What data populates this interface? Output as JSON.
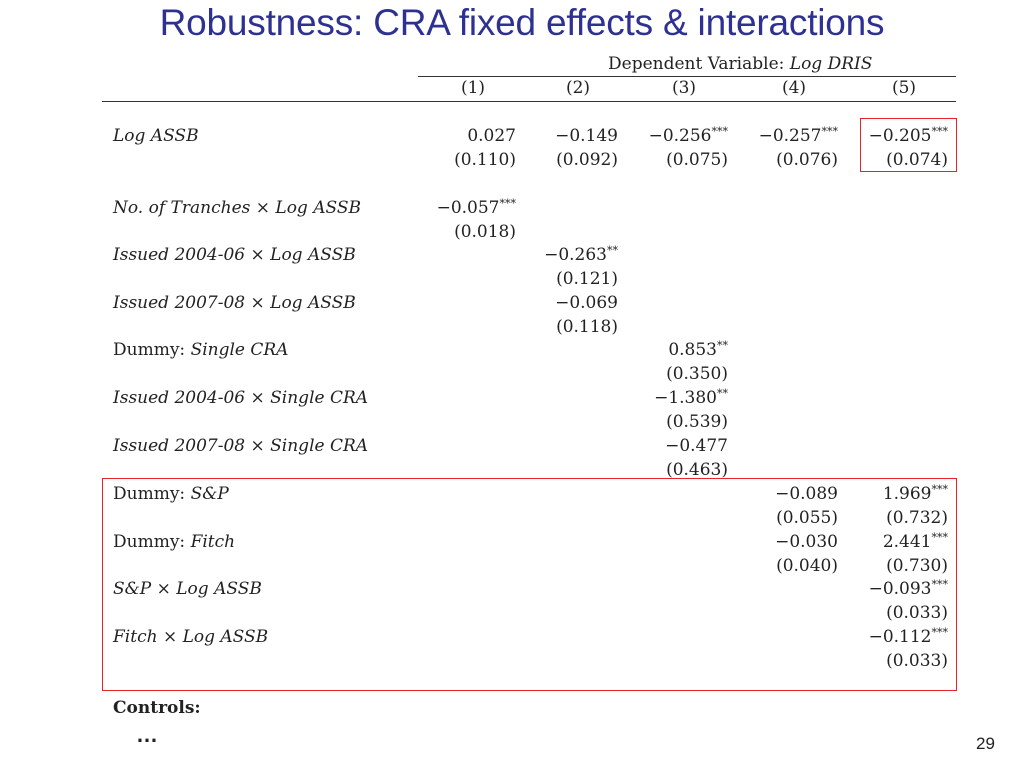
{
  "slide": {
    "title": "Robustness: CRA fixed effects & interactions",
    "page_number": "29",
    "controls_label": "Controls:",
    "ellipsis": "…"
  },
  "table": {
    "dependent_variable": "Dependent Variable: Log DRIS",
    "columns": [
      "(1)",
      "(2)",
      "(3)",
      "(4)",
      "(5)"
    ],
    "rows": [
      {
        "label": "Log ASSB",
        "coef": [
          "0.027",
          "−0.149",
          "−0.256***",
          "−0.257***",
          "−0.205***"
        ],
        "se": [
          "(0.110)",
          "(0.092)",
          "(0.075)",
          "(0.076)",
          "(0.074)"
        ]
      },
      {
        "label": "No. of Tranches × Log ASSB",
        "coef": [
          "−0.057***",
          "",
          "",
          "",
          ""
        ],
        "se": [
          "(0.018)",
          "",
          "",
          "",
          ""
        ]
      },
      {
        "label": "Issued 2004-06 × Log ASSB",
        "coef": [
          "",
          "−0.263**",
          "",
          "",
          ""
        ],
        "se": [
          "",
          "(0.121)",
          "",
          "",
          ""
        ]
      },
      {
        "label": "Issued 2007-08 × Log ASSB",
        "coef": [
          "",
          "−0.069",
          "",
          "",
          ""
        ],
        "se": [
          "",
          "(0.118)",
          "",
          "",
          ""
        ]
      },
      {
        "label": "Dummy: Single CRA",
        "coef": [
          "",
          "",
          "0.853**",
          "",
          ""
        ],
        "se": [
          "",
          "",
          "(0.350)",
          "",
          ""
        ]
      },
      {
        "label": "Issued 2004-06 × Single CRA",
        "coef": [
          "",
          "",
          "−1.380**",
          "",
          ""
        ],
        "se": [
          "",
          "",
          "(0.539)",
          "",
          ""
        ]
      },
      {
        "label": "Issued 2007-08 × Single CRA",
        "coef": [
          "",
          "",
          "−0.477",
          "",
          ""
        ],
        "se": [
          "",
          "",
          "(0.463)",
          "",
          ""
        ]
      },
      {
        "label": "Dummy: S&P",
        "coef": [
          "",
          "",
          "",
          "−0.089",
          "1.969***"
        ],
        "se": [
          "",
          "",
          "",
          "(0.055)",
          "(0.732)"
        ]
      },
      {
        "label": "Dummy: Fitch",
        "coef": [
          "",
          "",
          "",
          "−0.030",
          "2.441***"
        ],
        "se": [
          "",
          "",
          "",
          "(0.040)",
          "(0.730)"
        ]
      },
      {
        "label": "S&P × Log ASSB",
        "coef": [
          "",
          "",
          "",
          "",
          "−0.093***"
        ],
        "se": [
          "",
          "",
          "",
          "",
          "(0.033)"
        ]
      },
      {
        "label": "Fitch × Log ASSB",
        "coef": [
          "",
          "",
          "",
          "",
          "−0.112***"
        ],
        "se": [
          "",
          "",
          "",
          "",
          "(0.033)"
        ]
      }
    ]
  },
  "highlight_color": "#e8232a",
  "title_color": "#2e3192"
}
